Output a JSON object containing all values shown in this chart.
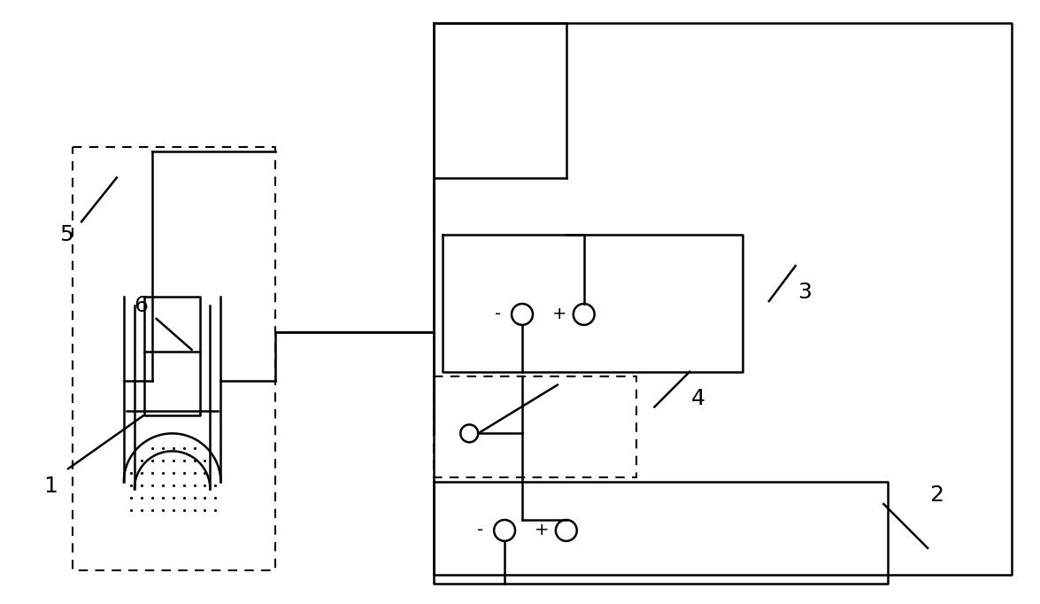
{
  "fig_width": 11.75,
  "fig_height": 6.82,
  "dpi": 100,
  "bg_color": "#ffffff",
  "lc": "#000000",
  "lw": 1.8,
  "dlw": 1.5,
  "fontsize": 16
}
